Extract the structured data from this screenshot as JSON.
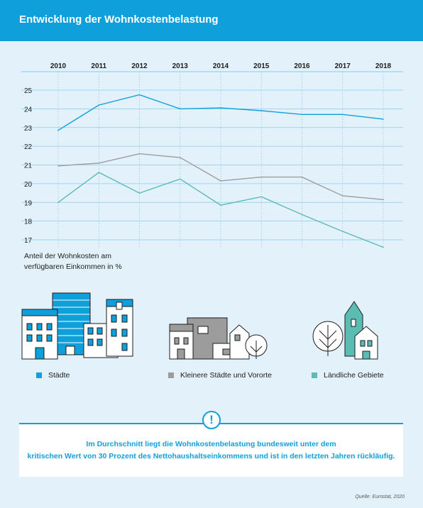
{
  "title": "Entwicklung der Wohnkostenbelastung",
  "chart_data": {
    "type": "line",
    "x": [
      "2010",
      "2011",
      "2012",
      "2013",
      "2014",
      "2015",
      "2016",
      "2017",
      "2018"
    ],
    "ylim": [
      17,
      25
    ],
    "yticks": [
      25,
      24,
      23,
      22,
      21,
      20,
      19,
      18,
      17
    ],
    "ylabel": "Anteil der Wohnkosten am verfügbaren Einkommen in %",
    "grid": true,
    "x_axis_position": "top",
    "series": [
      {
        "name": "Städte",
        "color": "#0fa0dc",
        "values": [
          22.85,
          24.2,
          24.75,
          24.0,
          24.05,
          23.9,
          23.7,
          23.7,
          23.45
        ]
      },
      {
        "name": "Kleinere Städte und Vororte",
        "color": "#9d9c9c",
        "values": [
          20.95,
          21.1,
          21.6,
          21.4,
          20.15,
          20.35,
          20.35,
          19.35,
          19.15
        ]
      },
      {
        "name": "Ländliche Gebiete",
        "color": "#5bbcb4",
        "values": [
          19.0,
          20.6,
          19.5,
          20.25,
          18.85,
          19.3,
          18.35,
          17.45,
          16.6
        ]
      }
    ]
  },
  "ylabel_lines": [
    "Anteil der Wohnkosten am",
    "verfügbaren Einkommen in %"
  ],
  "legend": [
    "Städte",
    "Kleinere Städte und Vororte",
    "Ländliche Gebiete"
  ],
  "colors": {
    "header": "#0fa0dc",
    "background": "#e3f1fa",
    "staedte": "#0fa0dc",
    "kleinere": "#9d9c9c",
    "laendlich": "#5bbcb4"
  },
  "info": {
    "icon": "exclamation-icon",
    "badge": "!",
    "line1": "Im Durchschnitt liegt die Wohnkostenbelastung bundesweit unter dem",
    "line2": "kritischen Wert von 30 Prozent des Nettohaushaltseinkommens und ist in den letzten Jahren rückläufig."
  },
  "source": "Quelle: Eurostat, 2020"
}
